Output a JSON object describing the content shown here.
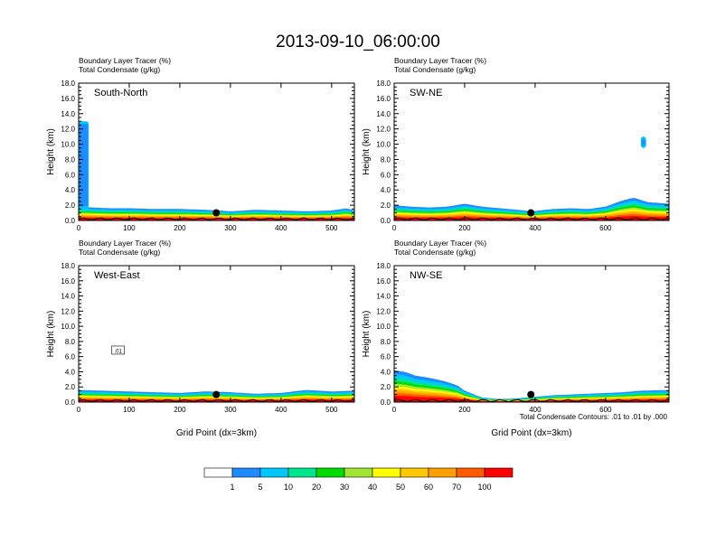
{
  "figure": {
    "title": "2013-09-10_06:00:00",
    "footnote": "Total Condensate Contours: .01 to .01 by .000"
  },
  "colorbar": {
    "colors": [
      "#ffffff",
      "#1e8cff",
      "#00c8ff",
      "#00e68c",
      "#00dc00",
      "#a0e632",
      "#ffff00",
      "#ffc800",
      "#ffa000",
      "#ff5a00",
      "#ff0000"
    ],
    "labels": [
      "1",
      "5",
      "10",
      "20",
      "30",
      "40",
      "50",
      "60",
      "70",
      "100"
    ]
  },
  "chart_data": [
    {
      "type": "area",
      "panel": "top-left",
      "label": "South-North",
      "subtitle1": "Boundary Layer Tracer   (%)",
      "subtitle2": "Total Condensate   (g/kg)",
      "ylabel": "Height (km)",
      "xlabel": "",
      "xlim": [
        0,
        545
      ],
      "ylim": [
        0,
        18
      ],
      "xticks": [
        "0",
        "100",
        "200",
        "300",
        "400",
        "500"
      ],
      "xtick_values": [
        0,
        100,
        200,
        300,
        400,
        500
      ],
      "yticks": [
        "0.0",
        "2.0",
        "4.0",
        "6.0",
        "8.0",
        "10.0",
        "12.0",
        "14.0",
        "16.0",
        "18.0"
      ],
      "marker": [
        272,
        1.0
      ],
      "tracer_top_km": {
        "x": [
          0,
          30,
          60,
          100,
          150,
          200,
          250,
          280,
          300,
          350,
          400,
          450,
          500,
          530,
          545
        ],
        "y": [
          1.8,
          1.7,
          1.6,
          1.6,
          1.5,
          1.5,
          1.4,
          1.3,
          1.2,
          1.4,
          1.3,
          1.2,
          1.3,
          1.6,
          1.3
        ]
      },
      "cloud_columns": [
        {
          "x": [
            0,
            20
          ],
          "y": [
            1.5,
            13.0
          ]
        }
      ]
    },
    {
      "type": "area",
      "panel": "top-right",
      "label": "SW-NE",
      "subtitle1": "Boundary Layer Tracer   (%)",
      "subtitle2": "Total Condensate   (g/kg)",
      "ylabel": "Height (km)",
      "xlabel": "",
      "xlim": [
        0,
        780
      ],
      "ylim": [
        0,
        18
      ],
      "xticks": [
        "0",
        "200",
        "400",
        "600"
      ],
      "xtick_values": [
        0,
        200,
        400,
        600
      ],
      "yticks": [
        "0.0",
        "2.0",
        "4.0",
        "6.0",
        "8.0",
        "10.0",
        "12.0",
        "14.0",
        "16.0",
        "18.0"
      ],
      "marker": [
        388,
        1.0
      ],
      "tracer_top_km": {
        "x": [
          0,
          50,
          100,
          150,
          200,
          250,
          300,
          350,
          390,
          450,
          500,
          550,
          600,
          640,
          680,
          720,
          780
        ],
        "y": [
          2.0,
          1.8,
          1.7,
          1.8,
          2.2,
          1.8,
          1.6,
          1.4,
          1.2,
          1.5,
          1.6,
          1.5,
          1.8,
          2.5,
          3.0,
          2.4,
          2.2
        ]
      },
      "cloud_columns": [
        {
          "x": [
            700,
            715
          ],
          "y": [
            9.5,
            11.0
          ]
        }
      ]
    },
    {
      "type": "area",
      "panel": "bottom-left",
      "label": "West-East",
      "subtitle1": "Boundary Layer Tracer   (%)",
      "subtitle2": "Total Condensate   (g/kg)",
      "ylabel": "Height (km)",
      "xlabel": "Grid Point (dx=3km)",
      "xlim": [
        0,
        545
      ],
      "ylim": [
        0,
        18
      ],
      "xticks": [
        "0",
        "100",
        "200",
        "300",
        "400",
        "500"
      ],
      "xtick_values": [
        0,
        100,
        200,
        300,
        400,
        500
      ],
      "yticks": [
        "0.0",
        "2.0",
        "4.0",
        "6.0",
        "8.0",
        "10.0",
        "12.0",
        "14.0",
        "16.0",
        "18.0"
      ],
      "marker": [
        272,
        1.0
      ],
      "contour_label": ".01",
      "tracer_top_km": {
        "x": [
          0,
          50,
          100,
          150,
          200,
          250,
          300,
          350,
          400,
          450,
          500,
          545
        ],
        "y": [
          1.6,
          1.5,
          1.4,
          1.3,
          1.2,
          1.4,
          1.3,
          1.1,
          1.2,
          1.6,
          1.4,
          1.5
        ]
      },
      "cloud_columns": []
    },
    {
      "type": "area",
      "panel": "bottom-right",
      "label": "NW-SE",
      "subtitle1": "Boundary Layer Tracer   (%)",
      "subtitle2": "Total Condensate   (g/kg)",
      "ylabel": "Height (km)",
      "xlabel": "Grid Point (dx=3km)",
      "xlim": [
        0,
        780
      ],
      "ylim": [
        0,
        18
      ],
      "xticks": [
        "0",
        "200",
        "400",
        "600"
      ],
      "xtick_values": [
        0,
        200,
        400,
        600
      ],
      "yticks": [
        "0.0",
        "2.0",
        "4.0",
        "6.0",
        "8.0",
        "10.0",
        "12.0",
        "14.0",
        "16.0",
        "18.0"
      ],
      "marker": [
        388,
        1.0
      ],
      "tracer_top_km": {
        "x": [
          0,
          30,
          60,
          100,
          140,
          180,
          200,
          250,
          300,
          350,
          400,
          450,
          500,
          550,
          600,
          650,
          700,
          780
        ],
        "y": [
          4.2,
          4.0,
          3.5,
          3.2,
          2.8,
          2.2,
          1.5,
          0.6,
          0.4,
          0.5,
          0.7,
          0.9,
          1.0,
          1.1,
          1.2,
          1.3,
          1.5,
          1.6
        ]
      },
      "cloud_columns": []
    }
  ]
}
